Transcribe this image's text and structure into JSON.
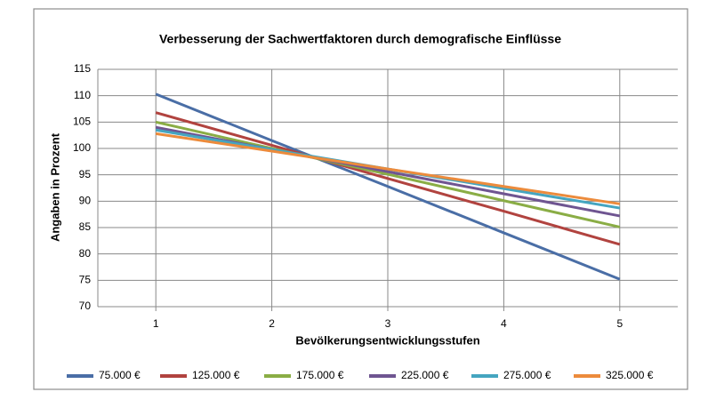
{
  "chart_data": {
    "type": "line",
    "title": "Verbesserung der Sachwertfaktoren durch demografische Einflüsse",
    "x_label": "Bevölkerungsentwicklungsstufen",
    "y_label": "Angaben in Prozent",
    "x": [
      1,
      2,
      3,
      4,
      5
    ],
    "xlim": [
      0.5,
      5.5
    ],
    "xticks": [
      1,
      2,
      3,
      4,
      5
    ],
    "ylim": [
      70,
      115
    ],
    "yticks": [
      70,
      75,
      80,
      85,
      90,
      95,
      100,
      105,
      110,
      115
    ],
    "grid": true,
    "legend": "bottom",
    "series": [
      {
        "name": "75.000 €",
        "color": "#4a6ea6",
        "values": [
          110.3,
          101.5,
          92.8,
          84.0,
          75.2
        ]
      },
      {
        "name": "125.000 €",
        "color": "#b1433f",
        "values": [
          106.8,
          100.6,
          94.3,
          88.1,
          81.8
        ]
      },
      {
        "name": "175.000 €",
        "color": "#8aad45",
        "values": [
          105.0,
          100.0,
          95.1,
          90.1,
          85.1
        ]
      },
      {
        "name": "225.000 €",
        "color": "#6f5591",
        "values": [
          104.0,
          99.8,
          95.6,
          91.4,
          87.2
        ]
      },
      {
        "name": "275.000 €",
        "color": "#45a5c0",
        "values": [
          103.5,
          99.8,
          96.1,
          92.4,
          88.7
        ]
      },
      {
        "name": "325.000 €",
        "color": "#ec8b3c",
        "values": [
          102.8,
          99.5,
          96.1,
          92.8,
          89.5
        ]
      }
    ]
  }
}
